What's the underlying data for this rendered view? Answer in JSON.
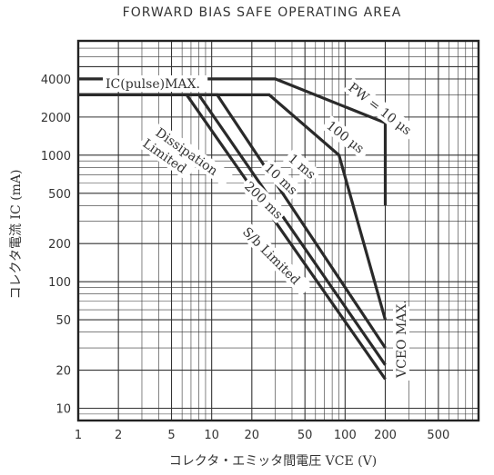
{
  "chart_data": {
    "type": "line",
    "title": "FORWARD BIAS SAFE OPERATING AREA",
    "xlabel": "コレクタ・エミッタ間電圧  VCE (V)",
    "ylabel": "コレクタ電流  IC (mA)",
    "x_scale": "log",
    "y_scale": "log",
    "xlim": [
      1,
      1000
    ],
    "ylim": [
      8,
      8000
    ],
    "grid": true,
    "x_ticks": [
      "1",
      "2",
      "5",
      "10",
      "20",
      "50",
      "100",
      "200",
      "500"
    ],
    "y_ticks": [
      "10",
      "20",
      "50",
      "100",
      "200",
      "500",
      "1000",
      "2000",
      "4000"
    ],
    "series": [
      {
        "name": "PW = 10 μs",
        "x": [
          1,
          30,
          200,
          200
        ],
        "y": [
          4000,
          4000,
          1800,
          400
        ]
      },
      {
        "name": "100 μs",
        "x": [
          1,
          27,
          90,
          200
        ],
        "y": [
          3000,
          3000,
          1000,
          50
        ]
      },
      {
        "name": "1 ms",
        "x": [
          1,
          11,
          200
        ],
        "y": [
          3000,
          3000,
          30
        ]
      },
      {
        "name": "10 ms",
        "x": [
          1,
          8,
          200
        ],
        "y": [
          3000,
          3000,
          22
        ]
      },
      {
        "name": "200 ms",
        "x": [
          1,
          6.5,
          200
        ],
        "y": [
          3000,
          3000,
          17
        ]
      }
    ],
    "annotations": [
      {
        "text": "IC(pulse)MAX."
      },
      {
        "text": "PW = 10 μs"
      },
      {
        "text": "100 μs"
      },
      {
        "text": "1 ms"
      },
      {
        "text": "10 ms"
      },
      {
        "text": "200 ms"
      },
      {
        "text": "Dissipation"
      },
      {
        "text": "Limited"
      },
      {
        "text": "S/b Limited"
      },
      {
        "text": "VCEO MAX."
      }
    ]
  }
}
